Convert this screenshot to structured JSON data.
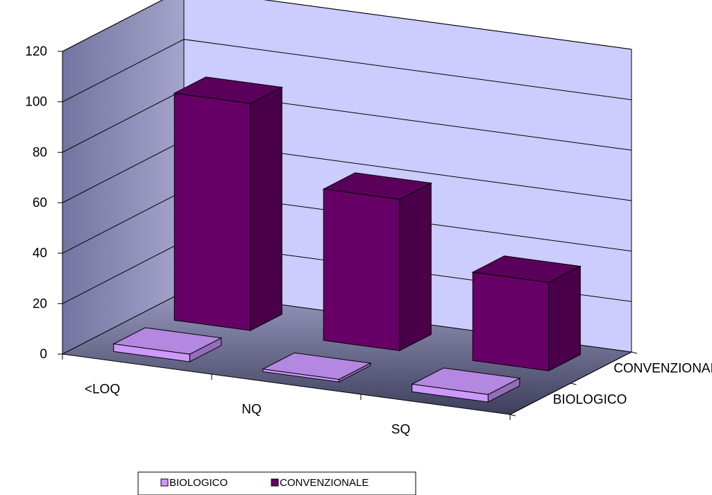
{
  "chart_data": {
    "type": "bar",
    "subtype": "3d-column-grouped-depth",
    "categories": [
      "<LOQ",
      "NQ",
      "SQ"
    ],
    "series": [
      {
        "name": "BIOLOGICO",
        "values": [
          3,
          1,
          3
        ],
        "color": "#CC99FF"
      },
      {
        "name": "CONVENZIONALE",
        "values": [
          90,
          60,
          35
        ],
        "color": "#660066"
      }
    ],
    "y_ticks": [
      "0",
      "20",
      "40",
      "60",
      "80",
      "100",
      "120"
    ],
    "ylim": [
      0,
      120
    ],
    "depth_labels": [
      "BIOLOGICO",
      "CONVENZIONALE"
    ],
    "grid": true,
    "legend": "bottom",
    "colors": {
      "back_wall": "#CCCCFF",
      "side_wall": "#8C8CB8",
      "floor": "#5A5A7A"
    }
  }
}
